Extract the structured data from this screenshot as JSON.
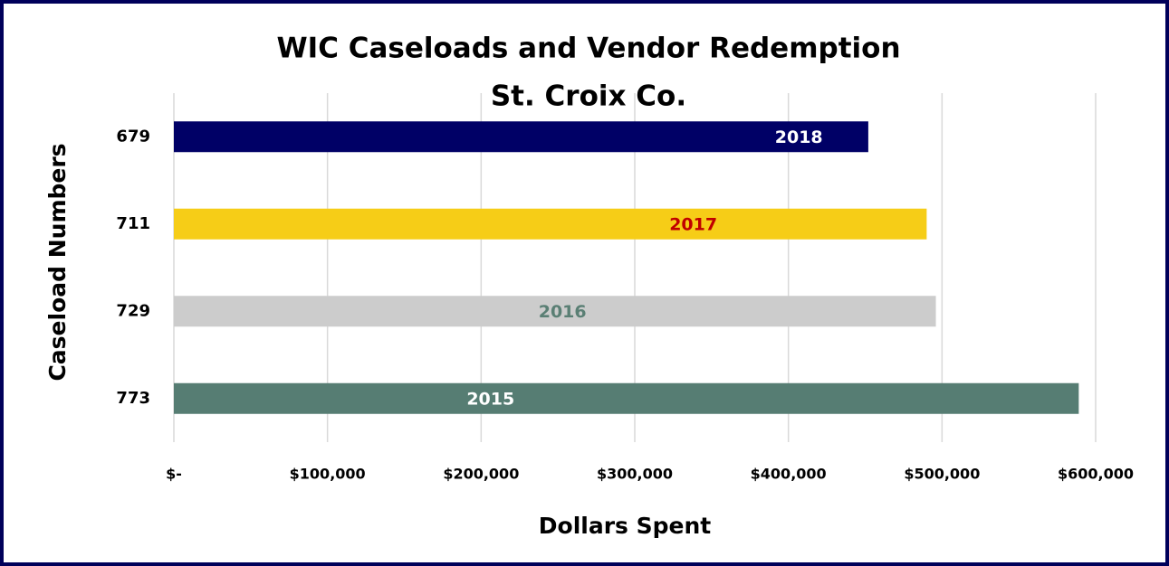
{
  "chart_data": {
    "type": "bar",
    "orientation": "horizontal",
    "title": [
      "WIC Caseloads and Vendor Redemption",
      "St. Croix Co."
    ],
    "x_label": "Dollars Spent",
    "y_label": "Caseload Numbers",
    "categories": [
      "679",
      "711",
      "729",
      "773"
    ],
    "values": [
      452000,
      490000,
      496000,
      589000
    ],
    "colors": [
      "#000066",
      "#f6cd17",
      "#cccccc",
      "#567d73"
    ],
    "bar_labels": [
      "2018",
      "2017",
      "2016",
      "2015"
    ],
    "bar_label_colors": [
      "#ffffff",
      "#c00000",
      "#5a7f74",
      "#ffffff"
    ],
    "xlim": [
      0,
      600000
    ],
    "xticks": [
      {
        "value": 0,
        "label": "$-"
      },
      {
        "value": 100000,
        "label": "$100,000"
      },
      {
        "value": 200000,
        "label": "$200,000"
      },
      {
        "value": 300000,
        "label": "$300,000"
      },
      {
        "value": 400000,
        "label": "$400,000"
      },
      {
        "value": 500000,
        "label": "$500,000"
      },
      {
        "value": 600000,
        "label": "$600,000"
      }
    ],
    "grid": true
  }
}
